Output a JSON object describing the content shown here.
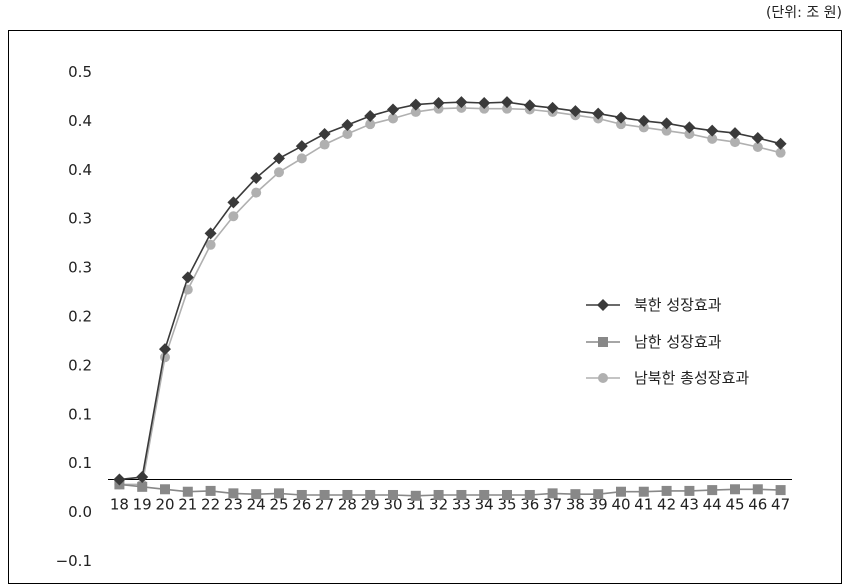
{
  "unit_label": "(단위: 조 원)",
  "chart_data": {
    "type": "line",
    "categories": [
      "18",
      "19",
      "20",
      "21",
      "22",
      "23",
      "24",
      "25",
      "26",
      "27",
      "28",
      "29",
      "30",
      "31",
      "32",
      "33",
      "34",
      "35",
      "36",
      "37",
      "38",
      "39",
      "40",
      "41",
      "42",
      "43",
      "44",
      "45",
      "46",
      "47"
    ],
    "y_tick_labels": [
      "0.5",
      "0.4",
      "0.4",
      "0.3",
      "0.3",
      "0.2",
      "0.2",
      "0.1",
      "0.1",
      "0.0",
      "−0.1"
    ],
    "ylim": [
      -0.1,
      0.5
    ],
    "legend_position": "right",
    "grid": false,
    "series": [
      {
        "name": "북한 성장효과",
        "marker": "diamond",
        "color": "#3a3a3a",
        "values": [
          0.0,
          0.003,
          0.16,
          0.248,
          0.302,
          0.34,
          0.37,
          0.394,
          0.409,
          0.424,
          0.435,
          0.446,
          0.454,
          0.46,
          0.462,
          0.463,
          0.462,
          0.463,
          0.459,
          0.456,
          0.452,
          0.449,
          0.444,
          0.44,
          0.437,
          0.432,
          0.428,
          0.425,
          0.419,
          0.412
        ]
      },
      {
        "name": "남한 성장효과",
        "marker": "square",
        "color": "#888888",
        "values": [
          -0.006,
          -0.009,
          -0.012,
          -0.015,
          -0.014,
          -0.017,
          -0.018,
          -0.017,
          -0.019,
          -0.019,
          -0.019,
          -0.019,
          -0.019,
          -0.02,
          -0.019,
          -0.019,
          -0.019,
          -0.019,
          -0.019,
          -0.017,
          -0.018,
          -0.018,
          -0.015,
          -0.015,
          -0.014,
          -0.014,
          -0.013,
          -0.012,
          -0.012,
          -0.013
        ]
      },
      {
        "name": "남북한 총성장효과",
        "marker": "circle",
        "color": "#b0b0b0",
        "values": [
          -0.006,
          -0.006,
          0.15,
          0.233,
          0.288,
          0.323,
          0.352,
          0.377,
          0.394,
          0.411,
          0.424,
          0.436,
          0.443,
          0.451,
          0.455,
          0.456,
          0.455,
          0.455,
          0.454,
          0.451,
          0.447,
          0.443,
          0.436,
          0.432,
          0.428,
          0.424,
          0.418,
          0.414,
          0.408,
          0.401
        ]
      }
    ]
  }
}
